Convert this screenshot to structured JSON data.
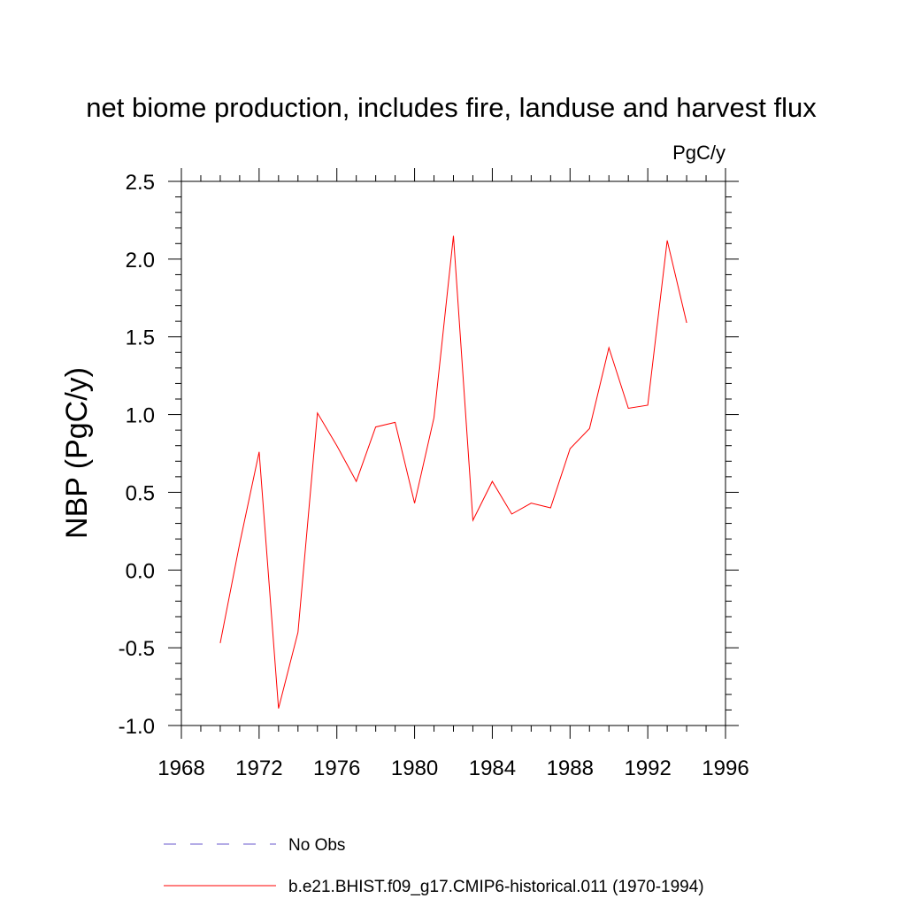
{
  "chart_data": {
    "type": "line",
    "title": "net biome production, includes fire, landuse and harvest flux",
    "units_label": "PgC/y",
    "ylabel": "NBP  (PgC/y)",
    "xlabel": "",
    "xlim": [
      1968,
      1996
    ],
    "ylim": [
      -1.0,
      2.5
    ],
    "x_ticks": [
      1968,
      1972,
      1976,
      1980,
      1984,
      1988,
      1992,
      1996
    ],
    "y_ticks": [
      -1.0,
      -0.5,
      0.0,
      0.5,
      1.0,
      1.5,
      2.0,
      2.5
    ],
    "y_tick_labels": [
      "-1.0",
      "-0.5",
      "0.0",
      "0.5",
      "1.0",
      "1.5",
      "2.0",
      "2.5"
    ],
    "x_tick_labels": [
      "1968",
      "1972",
      "1976",
      "1980",
      "1984",
      "1988",
      "1992",
      "1996"
    ],
    "grid": false,
    "legend_position": "bottom",
    "series": [
      {
        "name": "b.e21.BHIST.f09_g17.CMIP6-historical.011 (1970-1994)",
        "color": "#ff0000",
        "style": "solid",
        "x": [
          1970,
          1971,
          1972,
          1973,
          1974,
          1975,
          1976,
          1977,
          1978,
          1979,
          1980,
          1981,
          1982,
          1983,
          1984,
          1985,
          1986,
          1987,
          1988,
          1989,
          1990,
          1991,
          1992,
          1993,
          1994
        ],
        "y": [
          -0.47,
          0.17,
          0.76,
          -0.89,
          -0.4,
          1.01,
          0.8,
          0.57,
          0.92,
          0.95,
          0.43,
          0.98,
          2.15,
          0.32,
          0.57,
          0.36,
          0.43,
          0.4,
          0.78,
          0.91,
          1.43,
          1.04,
          1.06,
          2.12,
          1.59
        ]
      },
      {
        "name": "No Obs",
        "color": "#6a5acd",
        "style": "dashed",
        "x": [],
        "y": []
      }
    ]
  }
}
